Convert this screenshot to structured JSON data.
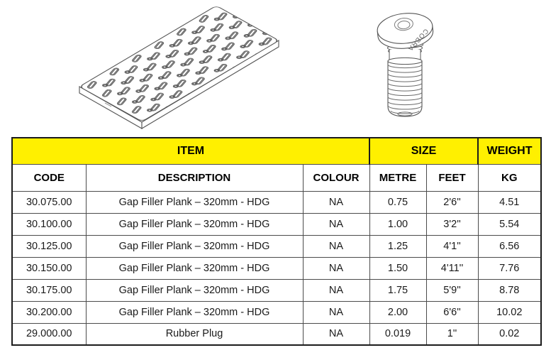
{
  "drawings": {
    "plank": {
      "name": "Gap Filler Plank isometric drawing"
    },
    "plug": {
      "name": "Rubber Plug drawing",
      "brand_text": "COBRA"
    }
  },
  "table": {
    "header_bg": "#fff000",
    "group_headers": [
      {
        "label": "ITEM",
        "colspan": 3
      },
      {
        "label": "SIZE",
        "colspan": 2
      },
      {
        "label": "WEIGHT",
        "colspan": 1
      }
    ],
    "columns": [
      "CODE",
      "DESCRIPTION",
      "COLOUR",
      "METRE",
      "FEET",
      "KG"
    ],
    "rows": [
      [
        "30.075.00",
        "Gap Filler Plank – 320mm - HDG",
        "NA",
        "0.75",
        "2'6''",
        "4.51"
      ],
      [
        "30.100.00",
        "Gap Filler Plank – 320mm - HDG",
        "NA",
        "1.00",
        "3'2''",
        "5.54"
      ],
      [
        "30.125.00",
        "Gap Filler Plank – 320mm - HDG",
        "NA",
        "1.25",
        "4'1''",
        "6.56"
      ],
      [
        "30.150.00",
        "Gap Filler Plank – 320mm - HDG",
        "NA",
        "1.50",
        "4'11''",
        "7.76"
      ],
      [
        "30.175.00",
        "Gap Filler Plank – 320mm - HDG",
        "NA",
        "1.75",
        "5'9''",
        "8.78"
      ],
      [
        "30.200.00",
        "Gap Filler Plank – 320mm - HDG",
        "NA",
        "2.00",
        "6'6''",
        "10.02"
      ],
      [
        "29.000.00",
        "Rubber Plug",
        "NA",
        "0.019",
        "1''",
        "0.02"
      ]
    ]
  }
}
